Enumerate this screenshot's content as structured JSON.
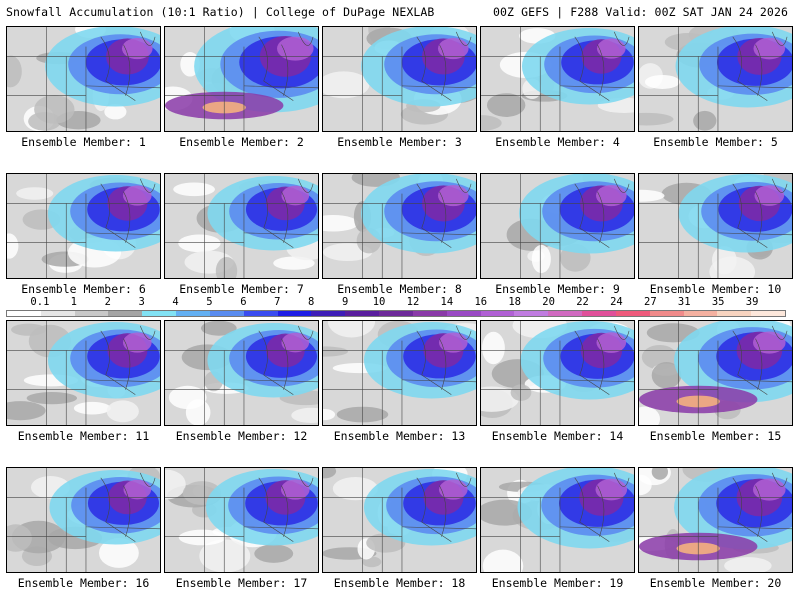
{
  "header": {
    "left": "Snowfall Accumulation (10:1 Ratio) | College of DuPage NEXLAB",
    "right": "00Z GEFS | F288 Valid: 00Z SAT JAN 24 2026"
  },
  "legend": {
    "ticks": [
      "0.1",
      "1",
      "2",
      "3",
      "4",
      "5",
      "6",
      "7",
      "8",
      "9",
      "10",
      "12",
      "14",
      "16",
      "18",
      "20",
      "22",
      "24",
      "27",
      "31",
      "35",
      "39"
    ],
    "colors": [
      "#ffffff",
      "#e6e6e6",
      "#c8c8c8",
      "#a4a4a4",
      "#82e2f4",
      "#63b0f3",
      "#5a8cf0",
      "#3a4cf0",
      "#1f1ee6",
      "#3f1eb8",
      "#5a1e9e",
      "#6e2a9a",
      "#8a3aa8",
      "#9a4ac4",
      "#b060d4",
      "#c07ce0",
      "#d06ac0",
      "#e0509a",
      "#ee5a7c",
      "#f08a8a",
      "#f4b0a0",
      "#f8d4c0",
      "#fde8dc"
    ],
    "units": "in"
  },
  "members": [
    {
      "label": "Ensemble Member: 1",
      "intensity": 0.55
    },
    {
      "label": "Ensemble Member: 2",
      "intensity": 0.85
    },
    {
      "label": "Ensemble Member: 3",
      "intensity": 0.55
    },
    {
      "label": "Ensemble Member: 4",
      "intensity": 0.45
    },
    {
      "label": "Ensemble Member: 5",
      "intensity": 0.6
    },
    {
      "label": "Ensemble Member: 6",
      "intensity": 0.45
    },
    {
      "label": "Ensemble Member: 7",
      "intensity": 0.4
    },
    {
      "label": "Ensemble Member: 8",
      "intensity": 0.55
    },
    {
      "label": "Ensemble Member: 9",
      "intensity": 0.55
    },
    {
      "label": "Ensemble Member: 10",
      "intensity": 0.5
    },
    {
      "label": "Ensemble Member: 11",
      "intensity": 0.45
    },
    {
      "label": "Ensemble Member: 12",
      "intensity": 0.4
    },
    {
      "label": "Ensemble Member: 13",
      "intensity": 0.45
    },
    {
      "label": "Ensemble Member: 14",
      "intensity": 0.5
    },
    {
      "label": "Ensemble Member: 15",
      "intensity": 0.65
    },
    {
      "label": "Ensemble Member: 16",
      "intensity": 0.4
    },
    {
      "label": "Ensemble Member: 17",
      "intensity": 0.45
    },
    {
      "label": "Ensemble Member: 18",
      "intensity": 0.45
    },
    {
      "label": "Ensemble Member: 19",
      "intensity": 0.6
    },
    {
      "label": "Ensemble Member: 20",
      "intensity": 0.65
    }
  ]
}
